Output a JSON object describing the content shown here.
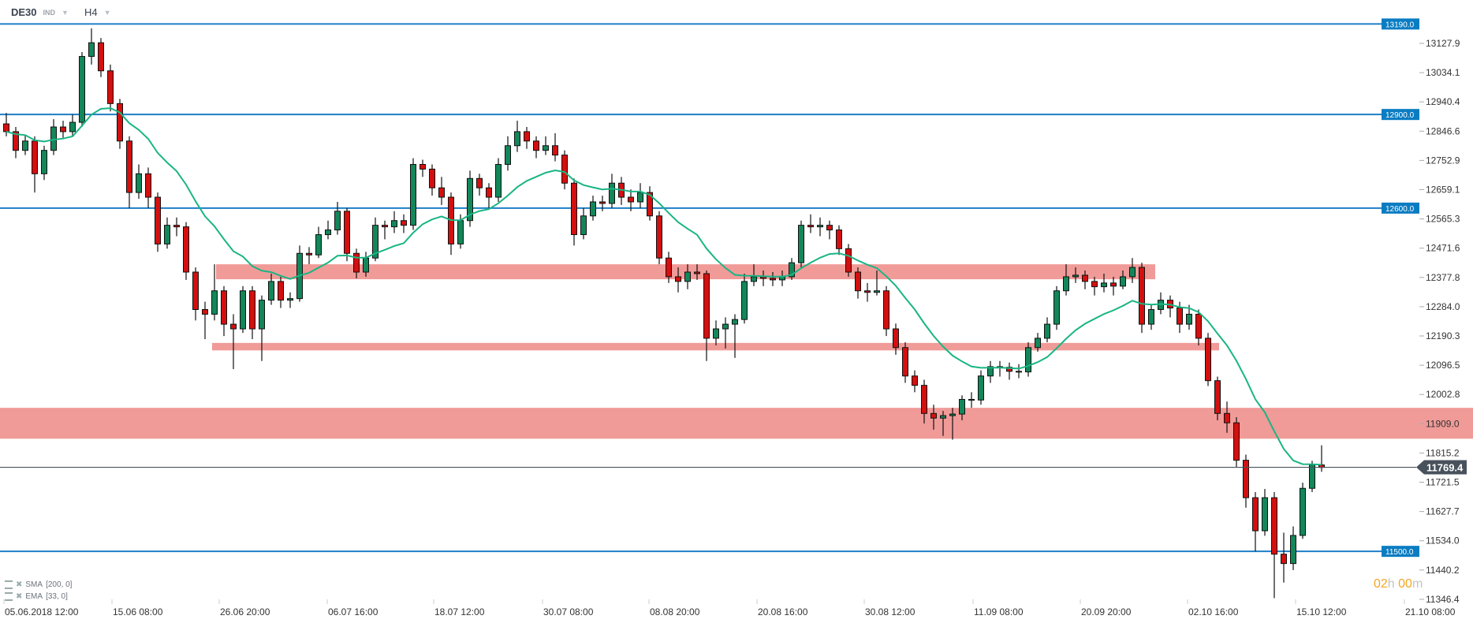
{
  "header": {
    "symbol": "DE30",
    "market": "IND",
    "timeframe": "H4"
  },
  "indicators": [
    {
      "label": "SMA",
      "params": "[200,  0]"
    },
    {
      "label": "EMA",
      "params": "[33,  0]"
    }
  ],
  "timer": {
    "hours": "02",
    "h": "h",
    "minutes": "00",
    "m": "m"
  },
  "colors": {
    "up": "#13875a",
    "down": "#d40f0f",
    "ema": "#1ab584",
    "level_line": "#1d7fc6",
    "level_label": "#0a7cc2",
    "zone": "#f09b98",
    "price_line": "#48525c"
  },
  "chart_data": {
    "type": "candlestick",
    "title": "",
    "y_ticks": [
      "13127.9",
      "13034.1",
      "12940.4",
      "12846.6",
      "12752.9",
      "12659.1",
      "12565.3",
      "12471.6",
      "12377.8",
      "12284.0",
      "12190.3",
      "12096.5",
      "12002.8",
      "11909.0",
      "11815.2",
      "11721.5",
      "11627.7",
      "11534.0",
      "11440.2",
      "11346.4"
    ],
    "x_ticks": [
      "05.06.2018  12:00",
      "15.06  08:00",
      "26.06  20:00",
      "06.07  16:00",
      "18.07  12:00",
      "30.07  08:00",
      "08.08  20:00",
      "20.08  16:00",
      "30.08  12:00",
      "11.09  08:00",
      "20.09  20:00",
      "02.10  16:00",
      "15.10  12:00",
      "21.10  08:00"
    ],
    "ylim": [
      11346.4,
      13190
    ],
    "levels": [
      {
        "value": 13190,
        "label": "13190.0"
      },
      {
        "value": 12900,
        "label": "12900.0"
      },
      {
        "value": 12600,
        "label": "12600.0"
      },
      {
        "value": 11500,
        "label": "11500.0"
      }
    ],
    "zones": [
      {
        "from": 12372,
        "to": 12420
      },
      {
        "from": 12144,
        "to": 12168
      },
      {
        "from": 11861,
        "to": 11960
      }
    ],
    "current_price": {
      "value": 11769.4,
      "label": "11769.4"
    },
    "ema_period": 33,
    "candles_ohlc": [
      [
        12870,
        12905,
        12830,
        12845
      ],
      [
        12845,
        12860,
        12760,
        12785
      ],
      [
        12785,
        12835,
        12770,
        12815
      ],
      [
        12815,
        12830,
        12650,
        12710
      ],
      [
        12710,
        12800,
        12690,
        12785
      ],
      [
        12785,
        12885,
        12770,
        12860
      ],
      [
        12860,
        12880,
        12825,
        12845
      ],
      [
        12845,
        12900,
        12830,
        12875
      ],
      [
        12875,
        13100,
        12860,
        13086
      ],
      [
        13086,
        13176,
        13060,
        13130
      ],
      [
        13130,
        13145,
        13020,
        13040
      ],
      [
        13040,
        13060,
        12910,
        12935
      ],
      [
        12935,
        12950,
        12790,
        12815
      ],
      [
        12815,
        12830,
        12600,
        12650
      ],
      [
        12650,
        12740,
        12630,
        12710
      ],
      [
        12710,
        12730,
        12600,
        12635
      ],
      [
        12635,
        12650,
        12460,
        12485
      ],
      [
        12485,
        12570,
        12470,
        12545
      ],
      [
        12545,
        12570,
        12510,
        12540
      ],
      [
        12540,
        12555,
        12370,
        12395
      ],
      [
        12395,
        12410,
        12240,
        12275
      ],
      [
        12275,
        12300,
        12180,
        12260
      ],
      [
        12260,
        12420,
        12240,
        12335
      ],
      [
        12335,
        12350,
        12190,
        12228
      ],
      [
        12228,
        12260,
        12084,
        12213
      ],
      [
        12213,
        12350,
        12200,
        12335
      ],
      [
        12335,
        12350,
        12180,
        12213
      ],
      [
        12213,
        12320,
        12110,
        12305
      ],
      [
        12305,
        12390,
        12290,
        12365
      ],
      [
        12365,
        12380,
        12280,
        12305
      ],
      [
        12305,
        12330,
        12280,
        12310
      ],
      [
        12310,
        12480,
        12300,
        12455
      ],
      [
        12455,
        12475,
        12420,
        12450
      ],
      [
        12450,
        12540,
        12440,
        12515
      ],
      [
        12515,
        12560,
        12500,
        12530
      ],
      [
        12530,
        12620,
        12515,
        12590
      ],
      [
        12590,
        12600,
        12430,
        12455
      ],
      [
        12455,
        12470,
        12375,
        12395
      ],
      [
        12395,
        12460,
        12380,
        12440
      ],
      [
        12440,
        12570,
        12430,
        12545
      ],
      [
        12545,
        12560,
        12500,
        12540
      ],
      [
        12540,
        12590,
        12520,
        12560
      ],
      [
        12560,
        12580,
        12520,
        12545
      ],
      [
        12545,
        12760,
        12530,
        12740
      ],
      [
        12740,
        12755,
        12700,
        12725
      ],
      [
        12725,
        12740,
        12640,
        12665
      ],
      [
        12665,
        12700,
        12610,
        12635
      ],
      [
        12635,
        12650,
        12450,
        12485
      ],
      [
        12485,
        12580,
        12470,
        12560
      ],
      [
        12560,
        12720,
        12540,
        12695
      ],
      [
        12695,
        12710,
        12640,
        12665
      ],
      [
        12665,
        12680,
        12600,
        12635
      ],
      [
        12635,
        12760,
        12620,
        12740
      ],
      [
        12740,
        12830,
        12720,
        12800
      ],
      [
        12800,
        12880,
        12780,
        12845
      ],
      [
        12845,
        12860,
        12790,
        12815
      ],
      [
        12815,
        12830,
        12760,
        12785
      ],
      [
        12785,
        12830,
        12770,
        12800
      ],
      [
        12800,
        12840,
        12750,
        12770
      ],
      [
        12770,
        12785,
        12660,
        12680
      ],
      [
        12680,
        12695,
        12480,
        12515
      ],
      [
        12515,
        12600,
        12500,
        12575
      ],
      [
        12575,
        12640,
        12560,
        12620
      ],
      [
        12620,
        12640,
        12590,
        12615
      ],
      [
        12615,
        12710,
        12600,
        12680
      ],
      [
        12680,
        12700,
        12610,
        12635
      ],
      [
        12635,
        12660,
        12590,
        12620
      ],
      [
        12620,
        12680,
        12600,
        12650
      ],
      [
        12650,
        12670,
        12560,
        12575
      ],
      [
        12575,
        12590,
        12420,
        12440
      ],
      [
        12440,
        12460,
        12360,
        12380
      ],
      [
        12380,
        12410,
        12330,
        12365
      ],
      [
        12365,
        12420,
        12340,
        12395
      ],
      [
        12395,
        12420,
        12370,
        12390
      ],
      [
        12390,
        12400,
        12110,
        12183
      ],
      [
        12183,
        12240,
        12160,
        12213
      ],
      [
        12213,
        12250,
        12150,
        12228
      ],
      [
        12228,
        12260,
        12120,
        12243
      ],
      [
        12243,
        12390,
        12230,
        12365
      ],
      [
        12365,
        12420,
        12350,
        12380
      ],
      [
        12380,
        12400,
        12350,
        12375
      ],
      [
        12375,
        12395,
        12350,
        12370
      ],
      [
        12370,
        12400,
        12350,
        12380
      ],
      [
        12380,
        12440,
        12370,
        12425
      ],
      [
        12425,
        12560,
        12410,
        12545
      ],
      [
        12545,
        12580,
        12520,
        12540
      ],
      [
        12540,
        12570,
        12510,
        12545
      ],
      [
        12545,
        12560,
        12500,
        12530
      ],
      [
        12530,
        12545,
        12450,
        12470
      ],
      [
        12470,
        12485,
        12380,
        12395
      ],
      [
        12395,
        12410,
        12310,
        12335
      ],
      [
        12335,
        12360,
        12300,
        12330
      ],
      [
        12330,
        12400,
        12320,
        12335
      ],
      [
        12335,
        12350,
        12190,
        12213
      ],
      [
        12213,
        12230,
        12130,
        12153
      ],
      [
        12153,
        12170,
        12040,
        12062
      ],
      [
        12062,
        12080,
        12010,
        12032
      ],
      [
        12032,
        12050,
        11910,
        11942
      ],
      [
        11942,
        11970,
        11890,
        11927
      ],
      [
        11927,
        11950,
        11870,
        11935
      ],
      [
        11935,
        11960,
        11858,
        11940
      ],
      [
        11940,
        12000,
        11920,
        11987
      ],
      [
        11987,
        12010,
        11960,
        11985
      ],
      [
        11985,
        12080,
        11970,
        12062
      ],
      [
        12062,
        12110,
        12040,
        12092
      ],
      [
        12092,
        12110,
        12060,
        12090
      ],
      [
        12090,
        12105,
        12050,
        12077
      ],
      [
        12077,
        12100,
        12055,
        12075
      ],
      [
        12075,
        12170,
        12060,
        12153
      ],
      [
        12153,
        12200,
        12140,
        12183
      ],
      [
        12183,
        12250,
        12170,
        12228
      ],
      [
        12228,
        12350,
        12210,
        12335
      ],
      [
        12335,
        12420,
        12320,
        12380
      ],
      [
        12380,
        12410,
        12360,
        12385
      ],
      [
        12385,
        12400,
        12340,
        12365
      ],
      [
        12365,
        12380,
        12320,
        12348
      ],
      [
        12348,
        12390,
        12330,
        12360
      ],
      [
        12360,
        12380,
        12320,
        12350
      ],
      [
        12350,
        12400,
        12340,
        12380
      ],
      [
        12380,
        12440,
        12360,
        12410
      ],
      [
        12410,
        12425,
        12200,
        12228
      ],
      [
        12228,
        12290,
        12210,
        12275
      ],
      [
        12275,
        12330,
        12260,
        12305
      ],
      [
        12305,
        12320,
        12250,
        12280
      ],
      [
        12280,
        12300,
        12200,
        12228
      ],
      [
        12228,
        12290,
        12210,
        12260
      ],
      [
        12260,
        12275,
        12160,
        12183
      ],
      [
        12183,
        12200,
        12030,
        12047
      ],
      [
        12047,
        12060,
        11920,
        11942
      ],
      [
        11942,
        11980,
        11880,
        11912
      ],
      [
        11912,
        11930,
        11770,
        11792
      ],
      [
        11792,
        11810,
        11640,
        11672
      ],
      [
        11672,
        11690,
        11500,
        11566
      ],
      [
        11566,
        11700,
        11550,
        11672
      ],
      [
        11672,
        11690,
        11350,
        11491
      ],
      [
        11491,
        11560,
        11400,
        11461
      ],
      [
        11461,
        11580,
        11440,
        11551
      ],
      [
        11551,
        11720,
        11540,
        11702
      ],
      [
        11702,
        11790,
        11690,
        11777
      ],
      [
        11777,
        11840,
        11755,
        11769
      ]
    ]
  }
}
